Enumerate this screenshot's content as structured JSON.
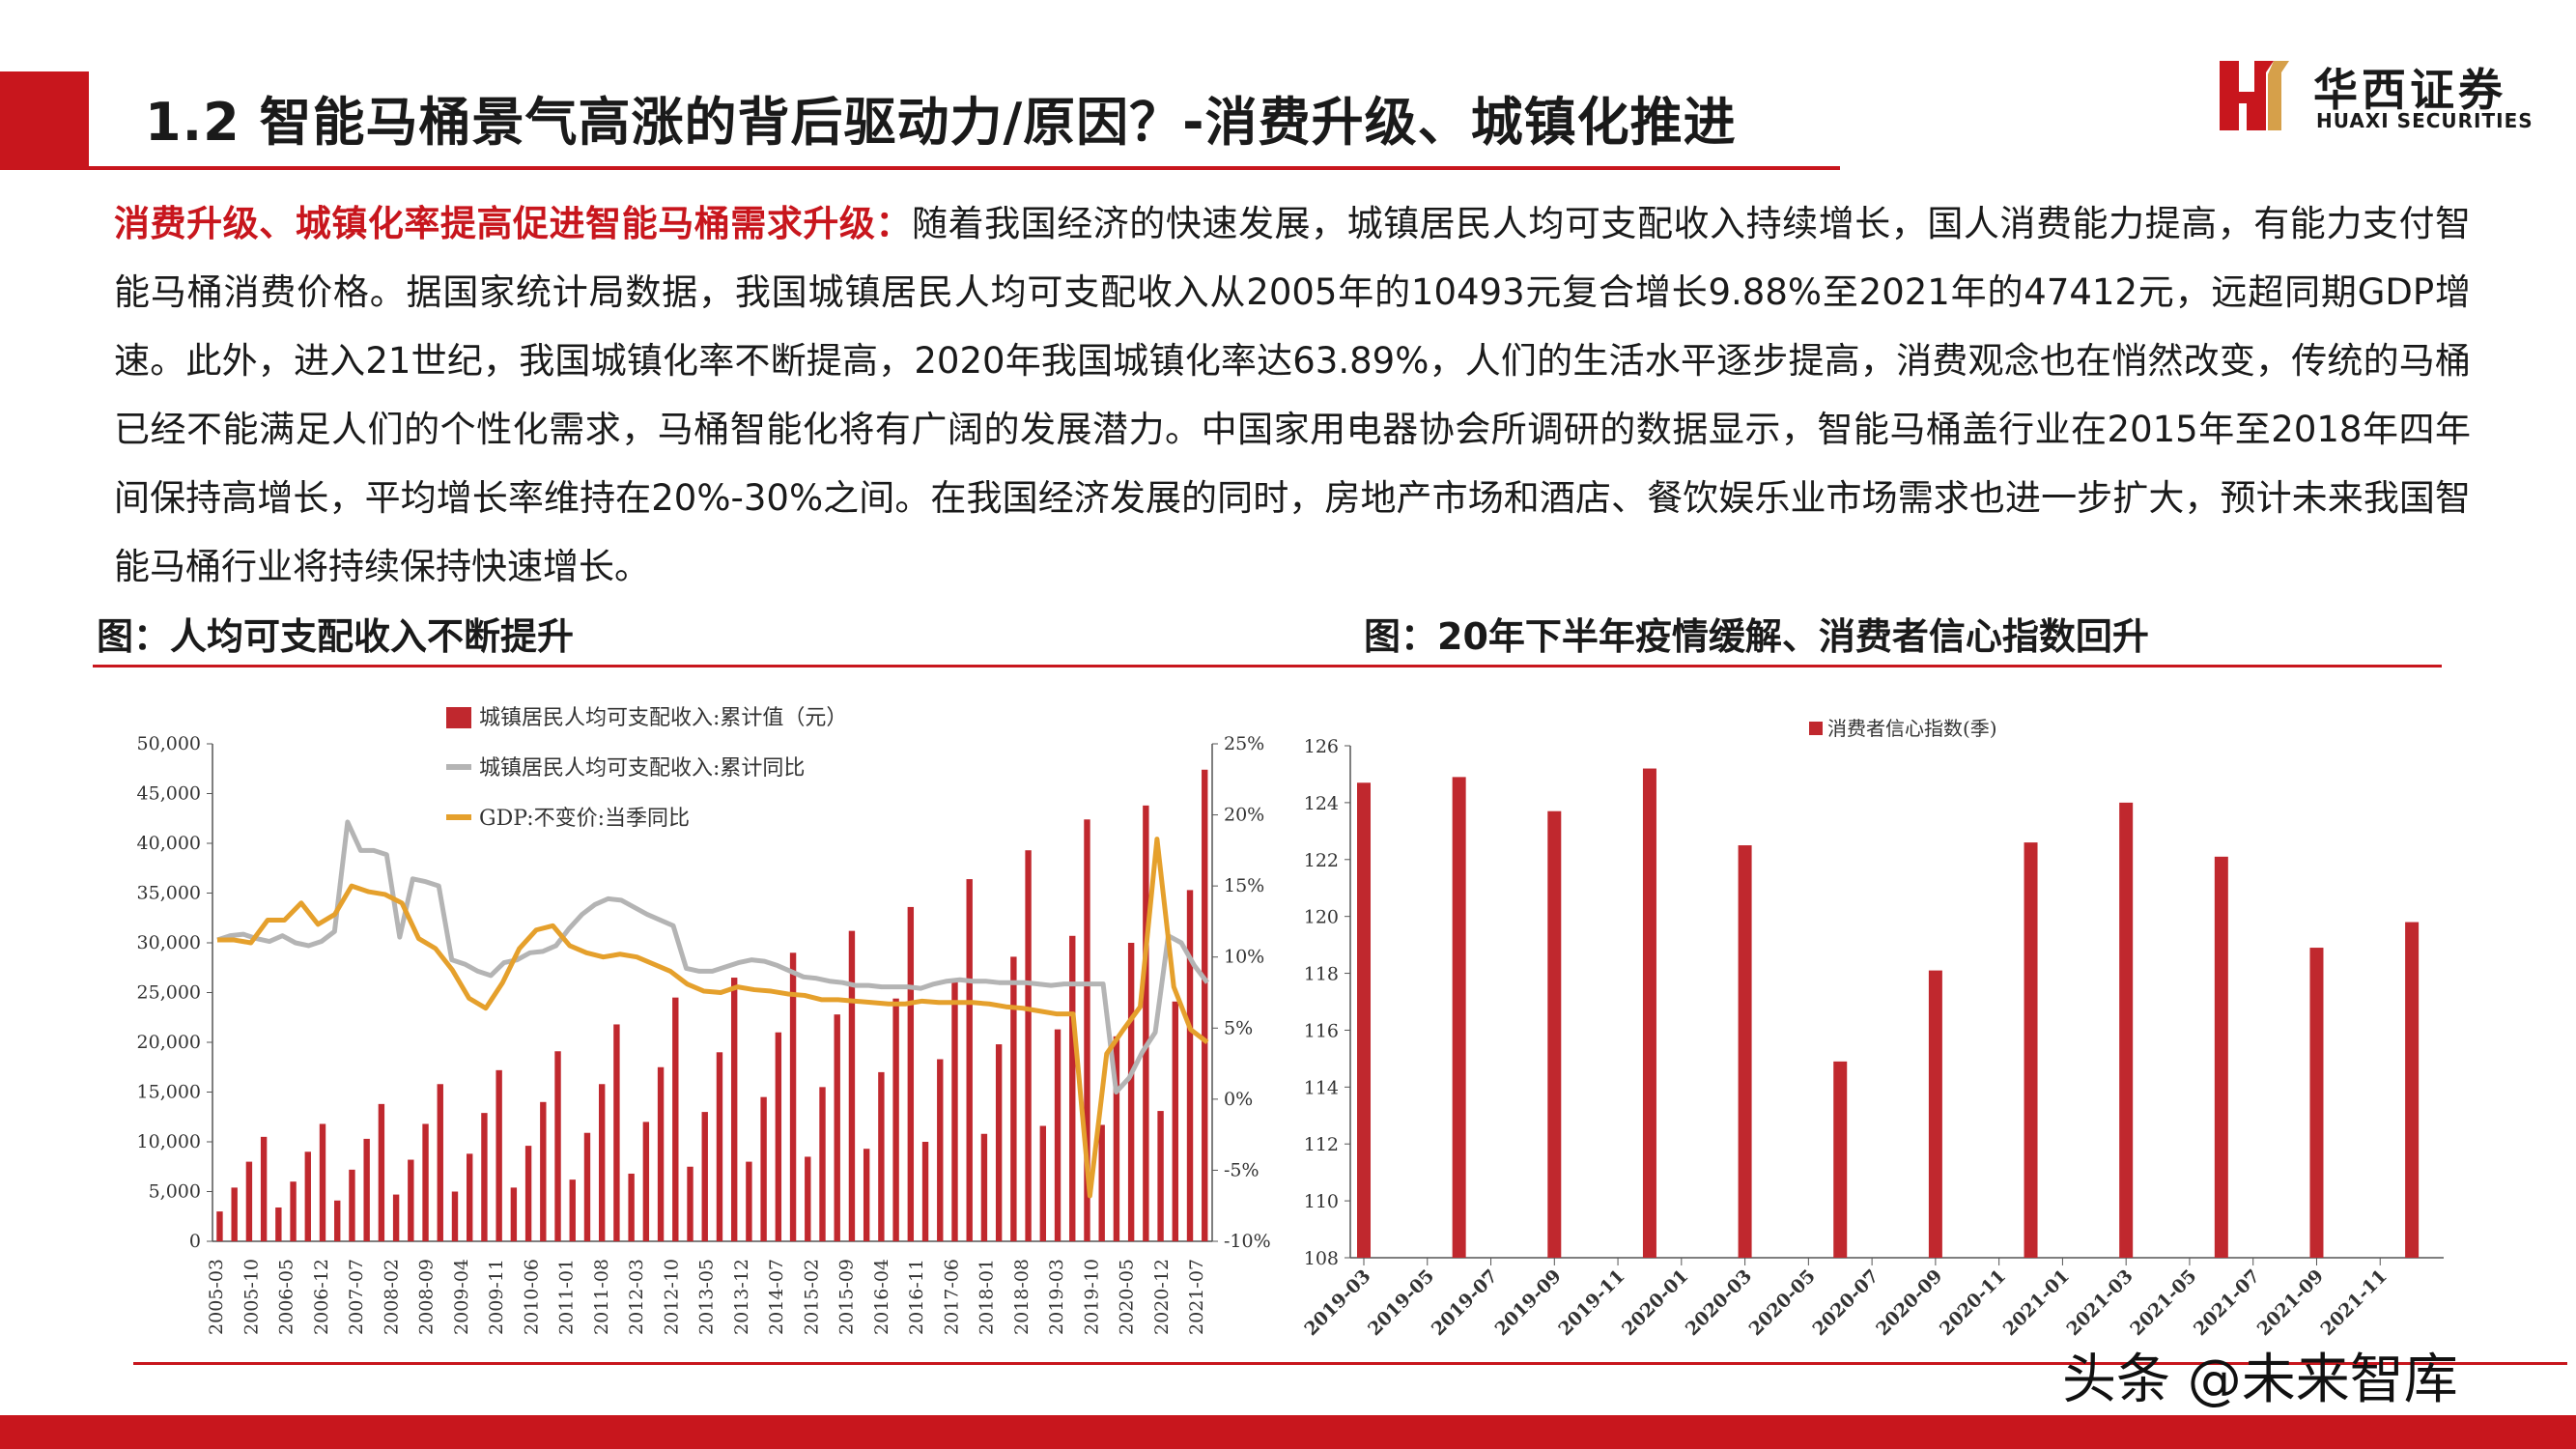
{
  "header": {
    "title": "1.2 智能马桶景气高涨的背后驱动力/原因？-消费升级、城镇化推进",
    "logo_cn": "华西证券",
    "logo_en": "HUAXI SECURITIES",
    "colors": {
      "brand_red": "#c8161d"
    }
  },
  "body": {
    "lead": "消费升级、城镇化率提高促进智能马桶需求升级：",
    "text": "随着我国经济的快速发展，城镇居民人均可支配收入持续增长，国人消费能力提高，有能力支付智能马桶消费价格。据国家统计局数据，我国城镇居民人均可支配收入从2005年的10493元复合增长9.88%至2021年的47412元，远超同期GDP增速。此外，进入21世纪，我国城镇化率不断提高，2020年我国城镇化率达63.89%，人们的生活水平逐步提高，消费观念也在悄然改变，传统的马桶已经不能满足人们的个性化需求，马桶智能化将有广阔的发展潜力。中国家用电器协会所调研的数据显示，智能马桶盖行业在2015年至2018年四年间保持高增长，平均增长率维持在20%-30%之间。在我国经济发展的同时，房地产市场和酒店、餐饮娱乐业市场需求也进一步扩大，预计未来我国智能马桶行业将持续保持快速增长。"
  },
  "charts": {
    "left_title": "图：人均可支配收入不断提升",
    "right_title": "图：20年下半年疫情缓解、消费者信心指数回升"
  },
  "footer": {
    "watermark": "头条 @未来智库"
  },
  "chart_data": [
    {
      "type": "bar+line",
      "y_left_ticks": [
        "0",
        "5,000",
        "10,000",
        "15,000",
        "20,000",
        "25,000",
        "30,000",
        "35,000",
        "40,000",
        "45,000",
        "50,000"
      ],
      "y_left_range": [
        0,
        50000
      ],
      "y_right_ticks": [
        "-10%",
        "-5%",
        "0%",
        "5%",
        "10%",
        "15%",
        "20%",
        "25%"
      ],
      "y_right_range": [
        -10,
        25
      ],
      "x_ticks": [
        "2005-03",
        "2005-10",
        "2006-05",
        "2006-12",
        "2007-07",
        "2008-02",
        "2008-09",
        "2009-04",
        "2009-11",
        "2010-06",
        "2011-01",
        "2011-08",
        "2012-03",
        "2012-10",
        "2013-05",
        "2013-12",
        "2014-07",
        "2015-02",
        "2015-09",
        "2016-04",
        "2016-11",
        "2017-06",
        "2018-01",
        "2018-08",
        "2019-03",
        "2019-10",
        "2020-05",
        "2020-12",
        "2021-07"
      ],
      "series": [
        {
          "name": "城镇居民人均可支配收入:累计值（元）",
          "kind": "bar",
          "color": "#c0282e",
          "values": [
            3000,
            5400,
            8000,
            10500,
            3400,
            6000,
            9000,
            11800,
            4100,
            7200,
            10300,
            13800,
            4700,
            8200,
            11800,
            15800,
            5000,
            8800,
            12900,
            17200,
            5400,
            9600,
            14000,
            19100,
            6200,
            10900,
            15800,
            21800,
            6800,
            12000,
            17500,
            24500,
            7500,
            13000,
            19000,
            26500,
            8000,
            14500,
            21000,
            29000,
            8500,
            15500,
            22800,
            31200,
            9300,
            17000,
            24400,
            33600,
            10000,
            18300,
            26300,
            36400,
            10800,
            19800,
            28600,
            39300,
            11600,
            21300,
            30700,
            42400,
            11700,
            20600,
            30000,
            43800,
            13100,
            24100,
            35300,
            47400
          ]
        },
        {
          "name": "城镇居民人均可支配收入:累计同比",
          "kind": "line",
          "color": "#b4b4b4",
          "values": [
            11.2,
            11.5,
            11.6,
            11.3,
            11.1,
            11.5,
            11.0,
            10.8,
            11.1,
            11.8,
            19.5,
            17.5,
            17.5,
            17.2,
            11.4,
            15.5,
            15.3,
            15.0,
            9.8,
            9.5,
            9.0,
            8.7,
            9.6,
            9.8,
            10.3,
            10.4,
            10.8,
            12.0,
            13.0,
            13.7,
            14.1,
            14.0,
            13.5,
            13.0,
            12.6,
            12.2,
            9.2,
            9.0,
            9.0,
            9.3,
            9.6,
            9.8,
            9.7,
            9.4,
            9.0,
            8.6,
            8.5,
            8.3,
            8.2,
            8.0,
            8.0,
            7.9,
            7.9,
            7.9,
            7.8,
            8.1,
            8.3,
            8.4,
            8.3,
            8.3,
            8.2,
            8.2,
            8.2,
            8.1,
            8.0,
            8.1,
            8.1,
            8.1,
            8.1,
            0.5,
            1.5,
            3.3,
            4.7,
            11.5,
            11.0,
            9.4,
            8.2
          ]
        },
        {
          "name": "GDP:不变价:当季同比",
          "kind": "line",
          "color": "#e5a02c",
          "values": [
            11.2,
            11.2,
            11.0,
            12.6,
            12.6,
            13.8,
            12.3,
            13.0,
            15.0,
            14.6,
            14.4,
            13.8,
            11.3,
            10.6,
            9.1,
            7.1,
            6.4,
            8.2,
            10.6,
            11.9,
            12.2,
            10.8,
            10.3,
            10.0,
            10.2,
            10.0,
            9.5,
            9.0,
            8.1,
            7.6,
            7.5,
            7.9,
            7.7,
            7.6,
            7.4,
            7.3,
            7.0,
            7.0,
            6.9,
            6.8,
            6.7,
            6.7,
            6.9,
            6.8,
            6.8,
            6.8,
            6.7,
            6.5,
            6.4,
            6.2,
            6.0,
            6.0,
            -6.8,
            3.2,
            4.9,
            6.5,
            18.3,
            7.9,
            4.9,
            4.0
          ]
        }
      ]
    },
    {
      "type": "bar",
      "y_ticks": [
        "108",
        "110",
        "112",
        "114",
        "116",
        "118",
        "120",
        "122",
        "124",
        "126"
      ],
      "y_range": [
        108,
        126
      ],
      "x_ticks": [
        "2019-03",
        "2019-05",
        "2019-07",
        "2019-09",
        "2019-11",
        "2020-01",
        "2020-03",
        "2020-05",
        "2020-07",
        "2020-09",
        "2020-11",
        "2021-01",
        "2021-03",
        "2021-05",
        "2021-07",
        "2021-09",
        "2021-11"
      ],
      "series": [
        {
          "name": "消费者信心指数(季)",
          "color": "#c0282e",
          "points": [
            {
              "x": "2019-03",
              "value": 124.7
            },
            {
              "x": "2019-06",
              "value": 124.9
            },
            {
              "x": "2019-09",
              "value": 123.7
            },
            {
              "x": "2019-12",
              "value": 125.2
            },
            {
              "x": "2020-03",
              "value": 122.5
            },
            {
              "x": "2020-06",
              "value": 114.9
            },
            {
              "x": "2020-09",
              "value": 118.1
            },
            {
              "x": "2020-12",
              "value": 122.6
            },
            {
              "x": "2021-03",
              "value": 124.0
            },
            {
              "x": "2021-06",
              "value": 122.1
            },
            {
              "x": "2021-09",
              "value": 118.9
            },
            {
              "x": "2021-12",
              "value": 119.8
            }
          ]
        }
      ]
    }
  ]
}
